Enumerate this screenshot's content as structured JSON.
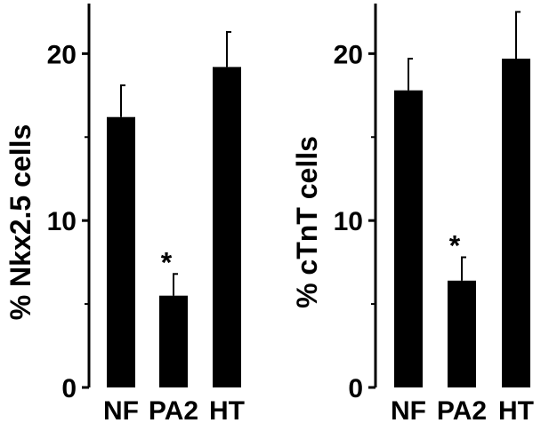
{
  "chart_data": [
    {
      "type": "bar",
      "categories": [
        "NF",
        "PA2",
        "HT"
      ],
      "values": [
        16.2,
        5.5,
        19.2
      ],
      "errors": [
        1.9,
        1.3,
        2.1
      ],
      "significance": [
        "",
        "*",
        ""
      ],
      "title": "",
      "xlabel": "",
      "ylabel": "% Nkx2.5 cells",
      "ylim": [
        0,
        23
      ],
      "yticks": [
        0,
        10,
        20
      ],
      "bar_color": "#000000",
      "grid": false
    },
    {
      "type": "bar",
      "categories": [
        "NF",
        "PA2",
        "HT"
      ],
      "values": [
        17.8,
        6.4,
        19.7
      ],
      "errors": [
        1.9,
        1.4,
        2.8
      ],
      "significance": [
        "",
        "*",
        ""
      ],
      "title": "",
      "xlabel": "",
      "ylabel": "% cTnT cells",
      "ylim": [
        0,
        23
      ],
      "yticks": [
        0,
        10,
        20
      ],
      "bar_color": "#000000",
      "grid": false
    }
  ]
}
